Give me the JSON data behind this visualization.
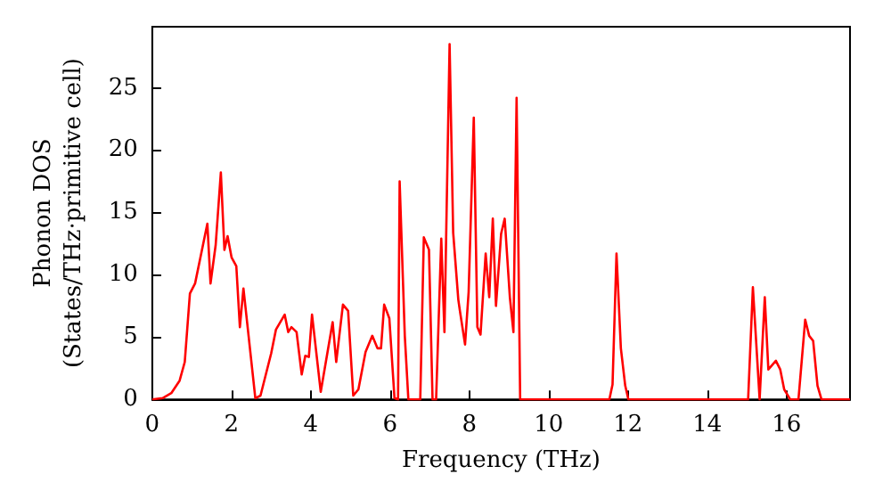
{
  "chart_data": {
    "type": "line",
    "xlabel": "Frequency (THz)",
    "ylabel": "Phonon DOS\n(States/THz·primitive cell)",
    "x": [
      0,
      0.26,
      0.48,
      0.69,
      0.82,
      0.95,
      1.08,
      1.39,
      1.47,
      1.6,
      1.73,
      1.82,
      1.9,
      2.0,
      2.12,
      2.21,
      2.3,
      2.6,
      2.73,
      3.0,
      3.12,
      3.34,
      3.43,
      3.51,
      3.64,
      3.77,
      3.86,
      3.95,
      4.03,
      4.25,
      4.55,
      4.64,
      4.81,
      4.94,
      5.07,
      5.2,
      5.38,
      5.55,
      5.68,
      5.77,
      5.85,
      5.98,
      6.11,
      6.2,
      6.24,
      6.37,
      6.46,
      6.76,
      6.85,
      6.98,
      7.07,
      7.16,
      7.29,
      7.37,
      7.5,
      7.59,
      7.72,
      7.76,
      7.89,
      7.98,
      8.11,
      8.2,
      8.28,
      8.41,
      8.5,
      8.59,
      8.67,
      8.8,
      8.89,
      9.02,
      9.11,
      9.19,
      9.28,
      11.53,
      11.61,
      11.71,
      11.82,
      11.93,
      12.01,
      15.03,
      15.15,
      15.32,
      15.45,
      15.54,
      15.73,
      15.84,
      15.94,
      16.09,
      16.3,
      16.47,
      16.57,
      16.67,
      16.78,
      16.88,
      17.6
    ],
    "series": [
      {
        "color": "#ff0000",
        "values": [
          0,
          0.1,
          0.5,
          1.5,
          3,
          8.5,
          9.3,
          14.1,
          9.3,
          12.4,
          18.2,
          12,
          13.1,
          11.4,
          10.7,
          5.8,
          8.9,
          0.1,
          0.3,
          3.7,
          5.6,
          6.8,
          5.4,
          5.8,
          5.4,
          2,
          3.5,
          3.4,
          6.8,
          0.6,
          6.2,
          3,
          7.6,
          7.1,
          0.3,
          0.8,
          3.8,
          5.1,
          4.1,
          4.1,
          7.6,
          6.5,
          0.1,
          0,
          17.5,
          5.1,
          0,
          0,
          13,
          12,
          0,
          0,
          12.9,
          5.4,
          28.5,
          13.4,
          8,
          7.1,
          4.4,
          8.6,
          22.6,
          5.8,
          5.2,
          11.7,
          8.2,
          14.5,
          7.5,
          13.3,
          14.5,
          8.2,
          5.4,
          24.2,
          0,
          0,
          1.2,
          11.7,
          4.1,
          1.1,
          0,
          0,
          9,
          0,
          8.2,
          2.4,
          3.1,
          2.4,
          0.8,
          0,
          0,
          6.4,
          5.1,
          4.7,
          1.1,
          0,
          0
        ]
      }
    ],
    "xlim": [
      0,
      17.6
    ],
    "ylim": [
      0,
      29.9
    ],
    "xticks": [
      0,
      2,
      4,
      6,
      8,
      10,
      12,
      14,
      16
    ],
    "yticks": [
      0,
      5,
      10,
      15,
      20,
      25
    ],
    "grid": false,
    "marker": "none",
    "line_style": "solid"
  }
}
